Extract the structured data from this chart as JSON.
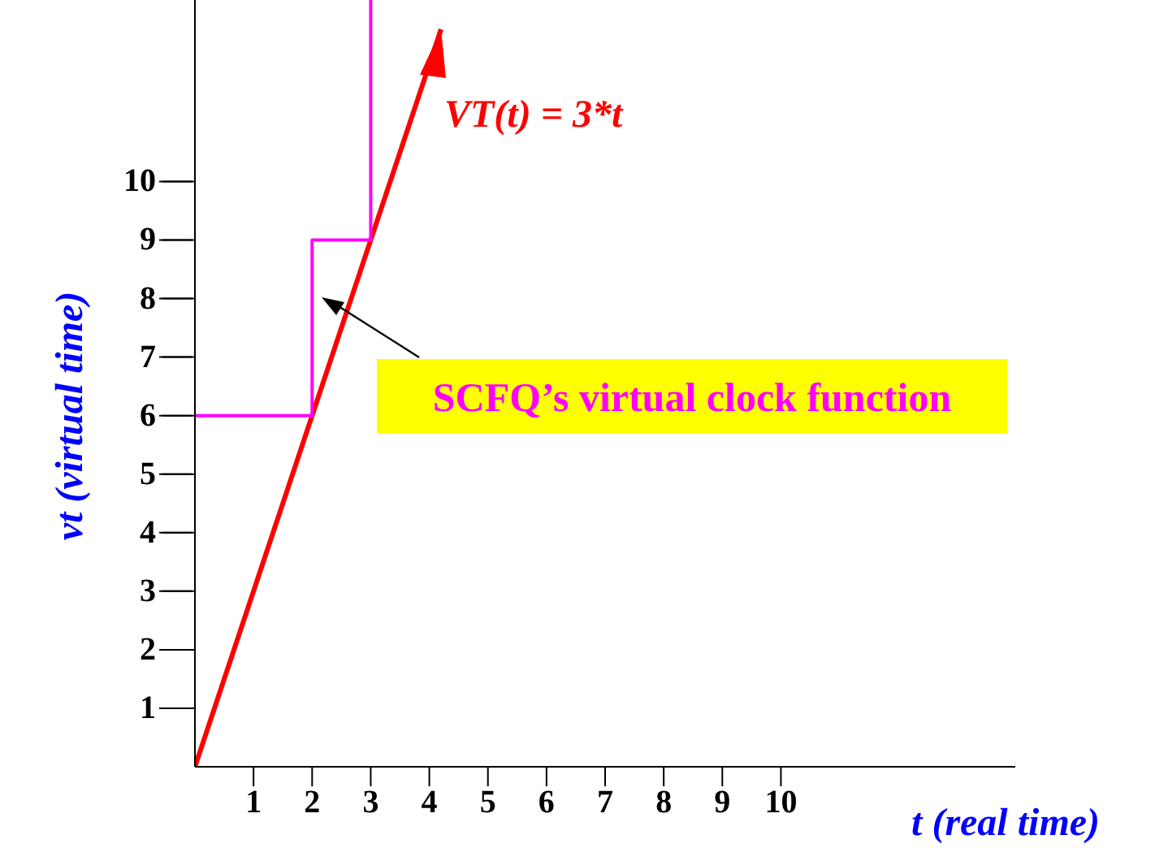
{
  "chart_data": {
    "type": "line",
    "xlabel": "t (real time)",
    "ylabel": "vt (virtual time)",
    "xlim": [
      0,
      14
    ],
    "ylim": [
      0,
      13.1
    ],
    "xticks": [
      1,
      2,
      3,
      4,
      5,
      6,
      7,
      8,
      9,
      10
    ],
    "yticks": [
      1,
      2,
      3,
      4,
      5,
      6,
      7,
      8,
      9,
      10
    ],
    "marker": "none",
    "series": [
      {
        "name": "VT(t) = 3*t",
        "color": "#ff0000",
        "x": [
          0,
          4.2
        ],
        "values": [
          0,
          12.6
        ]
      },
      {
        "type": "step",
        "color": "#ff00ff",
        "x": [
          0,
          2,
          3,
          3
        ],
        "values": [
          6,
          9,
          9,
          13.1
        ]
      }
    ],
    "annotations": [
      "SCFQ’s virtual clock function"
    ]
  }
}
